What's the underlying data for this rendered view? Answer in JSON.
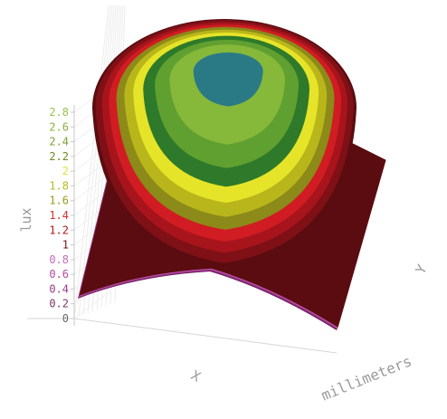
{
  "chart_data": {
    "type": "surface",
    "zlabel": "lux",
    "xlabel": "X",
    "ylabel": "Y",
    "unit_label": "millimeters",
    "zlim": [
      0,
      2.8
    ],
    "z_ticks": [
      {
        "label": "0",
        "value": 0.0,
        "color": "#6a6a6a"
      },
      {
        "label": "0.2",
        "value": 0.2,
        "color": "#7a3a6a"
      },
      {
        "label": "0.4",
        "value": 0.4,
        "color": "#9a3a8a"
      },
      {
        "label": "0.6",
        "value": 0.6,
        "color": "#b24aa2"
      },
      {
        "label": "0.8",
        "value": 0.8,
        "color": "#c26ab6"
      },
      {
        "label": "1",
        "value": 1.0,
        "color": "#7a1010"
      },
      {
        "label": "1.2",
        "value": 1.2,
        "color": "#b01818"
      },
      {
        "label": "1.4",
        "value": 1.4,
        "color": "#d83030"
      },
      {
        "label": "1.6",
        "value": 1.6,
        "color": "#9a9a20"
      },
      {
        "label": "1.8",
        "value": 1.8,
        "color": "#b8b820"
      },
      {
        "label": "2",
        "value": 2.0,
        "color": "#e0e040"
      },
      {
        "label": "2.2",
        "value": 2.2,
        "color": "#6a8a20"
      },
      {
        "label": "2.4",
        "value": 2.4,
        "color": "#7aa030"
      },
      {
        "label": "2.6",
        "value": 2.6,
        "color": "#8ab040"
      },
      {
        "label": "2.8",
        "value": 2.8,
        "color": "#98c050"
      }
    ],
    "bands": [
      {
        "from": 0.0,
        "to": 0.2,
        "color": "#6e1a5a"
      },
      {
        "from": 0.2,
        "to": 0.4,
        "color": "#8a2a78"
      },
      {
        "from": 0.4,
        "to": 0.6,
        "color": "#a63a96"
      },
      {
        "from": 0.6,
        "to": 0.8,
        "color": "#c05aae"
      },
      {
        "from": 0.8,
        "to": 1.0,
        "color": "#5a0c10"
      },
      {
        "from": 1.0,
        "to": 1.2,
        "color": "#7e1016"
      },
      {
        "from": 1.2,
        "to": 1.4,
        "color": "#a8141c"
      },
      {
        "from": 1.4,
        "to": 1.6,
        "color": "#d01c22"
      },
      {
        "from": 1.6,
        "to": 1.8,
        "color": "#8c8a18"
      },
      {
        "from": 1.8,
        "to": 2.0,
        "color": "#b8b61a"
      },
      {
        "from": 2.0,
        "to": 2.2,
        "color": "#e6e428"
      },
      {
        "from": 2.2,
        "to": 2.4,
        "color": "#2e7a2a"
      },
      {
        "from": 2.4,
        "to": 2.6,
        "color": "#60a030"
      },
      {
        "from": 2.6,
        "to": 2.8,
        "color": "#86b83a"
      },
      {
        "from": 2.8,
        "to": 3.0,
        "color": "#2a7a86"
      }
    ],
    "peak_value": 2.85,
    "corner_value": 0.2,
    "edge_mid_value": 0.9,
    "grid": true
  }
}
